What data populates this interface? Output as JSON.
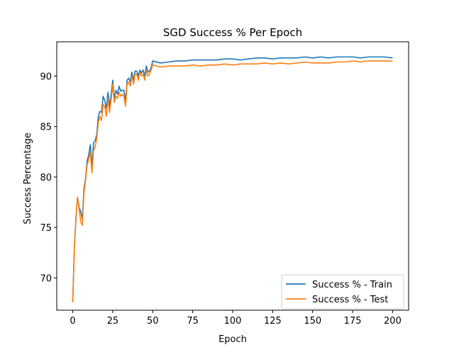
{
  "chart_data": {
    "type": "line",
    "title": "SGD Success % Per Epoch",
    "xlabel": "Epoch",
    "ylabel": "Success Percentage",
    "xlim": [
      -10,
      210
    ],
    "ylim": [
      66.8,
      93.4
    ],
    "xticks": [
      0,
      25,
      50,
      75,
      100,
      125,
      150,
      175,
      200
    ],
    "yticks": [
      70,
      75,
      80,
      85,
      90
    ],
    "grid": false,
    "legend_position": "lower-right",
    "series": [
      {
        "name": "Success % - Train",
        "color": "#1f77b4",
        "x": [
          0,
          1,
          2,
          3,
          4,
          5,
          6,
          7,
          8,
          9,
          10,
          11,
          12,
          13,
          14,
          15,
          16,
          17,
          18,
          19,
          20,
          21,
          22,
          23,
          24,
          25,
          26,
          27,
          28,
          29,
          30,
          31,
          32,
          33,
          34,
          35,
          36,
          37,
          38,
          39,
          40,
          41,
          42,
          43,
          44,
          45,
          46,
          47,
          48,
          49,
          50,
          55,
          60,
          65,
          70,
          75,
          80,
          85,
          90,
          95,
          100,
          105,
          110,
          115,
          120,
          125,
          130,
          135,
          140,
          145,
          150,
          155,
          160,
          165,
          170,
          175,
          180,
          185,
          190,
          195,
          200
        ],
        "y": [
          67.6,
          73.0,
          76.0,
          78.0,
          77.0,
          76.6,
          75.8,
          78.8,
          79.8,
          81.6,
          82.2,
          83.2,
          81.0,
          83.4,
          83.6,
          84.2,
          86.0,
          86.5,
          86.4,
          88.0,
          87.6,
          86.8,
          88.4,
          87.0,
          88.2,
          89.6,
          87.8,
          88.6,
          88.2,
          89.0,
          88.5,
          88.6,
          88.6,
          87.5,
          89.6,
          89.8,
          89.4,
          90.4,
          89.6,
          90.5,
          90.5,
          90.0,
          90.6,
          90.3,
          90.6,
          90.0,
          91.0,
          90.4,
          90.5,
          90.8,
          91.5,
          91.3,
          91.4,
          91.5,
          91.5,
          91.6,
          91.6,
          91.6,
          91.6,
          91.7,
          91.7,
          91.6,
          91.7,
          91.8,
          91.8,
          91.7,
          91.8,
          91.8,
          91.8,
          91.9,
          91.8,
          91.9,
          91.8,
          91.9,
          91.9,
          91.9,
          91.8,
          91.9,
          91.9,
          91.9,
          91.8
        ]
      },
      {
        "name": "Success % - Test",
        "color": "#ff7f0e",
        "x": [
          0,
          1,
          2,
          3,
          4,
          5,
          6,
          7,
          8,
          9,
          10,
          11,
          12,
          13,
          14,
          15,
          16,
          17,
          18,
          19,
          20,
          21,
          22,
          23,
          24,
          25,
          26,
          27,
          28,
          29,
          30,
          31,
          32,
          33,
          34,
          35,
          36,
          37,
          38,
          39,
          40,
          41,
          42,
          43,
          44,
          45,
          46,
          47,
          48,
          49,
          50,
          55,
          60,
          65,
          70,
          75,
          80,
          85,
          90,
          95,
          100,
          105,
          110,
          115,
          120,
          125,
          130,
          135,
          140,
          145,
          150,
          155,
          160,
          165,
          170,
          175,
          180,
          185,
          190,
          195,
          200
        ],
        "y": [
          67.6,
          72.8,
          75.8,
          78.0,
          76.8,
          75.6,
          75.2,
          78.4,
          79.6,
          81.2,
          81.8,
          82.4,
          80.4,
          82.6,
          83.0,
          83.8,
          85.4,
          86.0,
          85.6,
          87.2,
          87.0,
          86.0,
          87.8,
          86.4,
          87.6,
          89.2,
          87.4,
          88.0,
          87.8,
          88.4,
          88.0,
          88.2,
          88.0,
          87.0,
          89.2,
          89.4,
          89.0,
          90.0,
          89.2,
          90.2,
          90.2,
          89.6,
          90.4,
          90.0,
          90.2,
          89.6,
          90.6,
          90.0,
          90.2,
          90.6,
          91.1,
          90.9,
          91.0,
          91.0,
          91.0,
          91.1,
          91.0,
          91.1,
          91.1,
          91.2,
          91.1,
          91.2,
          91.2,
          91.2,
          91.3,
          91.2,
          91.3,
          91.2,
          91.3,
          91.4,
          91.3,
          91.3,
          91.3,
          91.4,
          91.4,
          91.5,
          91.4,
          91.5,
          91.5,
          91.5,
          91.5
        ]
      }
    ]
  }
}
